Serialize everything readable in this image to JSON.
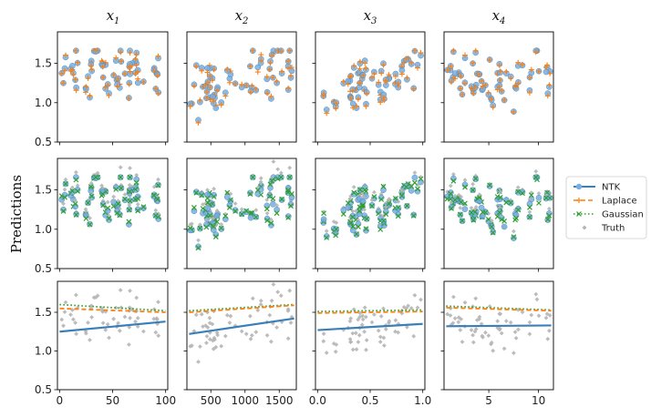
{
  "figure": {
    "ylabel": "Predictions",
    "column_titles": [
      {
        "base": "x",
        "sub": "1"
      },
      {
        "base": "x",
        "sub": "2"
      },
      {
        "base": "x",
        "sub": "3"
      },
      {
        "base": "x",
        "sub": "4"
      }
    ],
    "colors": {
      "NTK": "#3b7fb8",
      "NTK_points": "#78aee0",
      "Laplace": "#ff7f0e",
      "Gaussian": "#2ca02c",
      "Truth": "#b5b5b5"
    }
  },
  "legend": {
    "entries": [
      {
        "label": "NTK",
        "style": "line-circle"
      },
      {
        "label": "Laplace",
        "style": "dash-plus"
      },
      {
        "label": "Gaussian",
        "style": "dot-x"
      },
      {
        "label": "Truth",
        "style": "diamond"
      }
    ]
  },
  "chart_data": {
    "type": "scatter",
    "title": "",
    "ylabel": "Predictions",
    "ylim": [
      0.5,
      1.9
    ],
    "yticks": [
      0.5,
      1.0,
      1.5
    ],
    "ytick_labels": [
      "0.5",
      "1.0",
      "1.5"
    ],
    "rows": [
      {
        "row": 1,
        "series": [
          "NTK",
          "Laplace"
        ]
      },
      {
        "row": 2,
        "series": [
          "NTK",
          "Gaussian",
          "Truth"
        ]
      },
      {
        "row": 3,
        "series": [
          "Truth",
          "NTK",
          "Laplace",
          "Gaussian"
        ],
        "trend_lines": true
      }
    ],
    "columns": [
      {
        "variable": "x1",
        "xlim": [
          -2,
          102
        ],
        "xticks": [
          0,
          50,
          100
        ],
        "xtick_labels": [
          "0",
          "50",
          "100"
        ],
        "trend": {
          "NTK": [
            1.25,
            1.38
          ],
          "Laplace": [
            1.55,
            1.5
          ],
          "Gaussian": [
            1.6,
            1.52
          ]
        }
      },
      {
        "variable": "x2",
        "xlim": [
          150,
          1750
        ],
        "xticks": [
          500,
          1000,
          1500
        ],
        "xtick_labels": [
          "500",
          "1000",
          "1500"
        ],
        "trend": {
          "NTK": [
            1.22,
            1.42
          ],
          "Laplace": [
            1.5,
            1.59
          ],
          "Gaussian": [
            1.52,
            1.6
          ]
        }
      },
      {
        "variable": "x3",
        "xlim": [
          -0.02,
          1.02
        ],
        "xticks": [
          0.0,
          0.5,
          1.0
        ],
        "xtick_labels": [
          "0.0",
          "0.5",
          "1.0"
        ],
        "trend": {
          "NTK": [
            1.27,
            1.35
          ],
          "Laplace": [
            1.49,
            1.51
          ],
          "Gaussian": [
            1.51,
            1.53
          ]
        }
      },
      {
        "variable": "x4",
        "xlim": [
          0.5,
          11.5
        ],
        "xticks": [
          5,
          10
        ],
        "xtick_labels": [
          "5",
          "10"
        ],
        "trend": {
          "NTK": [
            1.32,
            1.33
          ],
          "Laplace": [
            1.56,
            1.52
          ],
          "Gaussian": [
            1.58,
            1.53
          ]
        }
      }
    ]
  }
}
